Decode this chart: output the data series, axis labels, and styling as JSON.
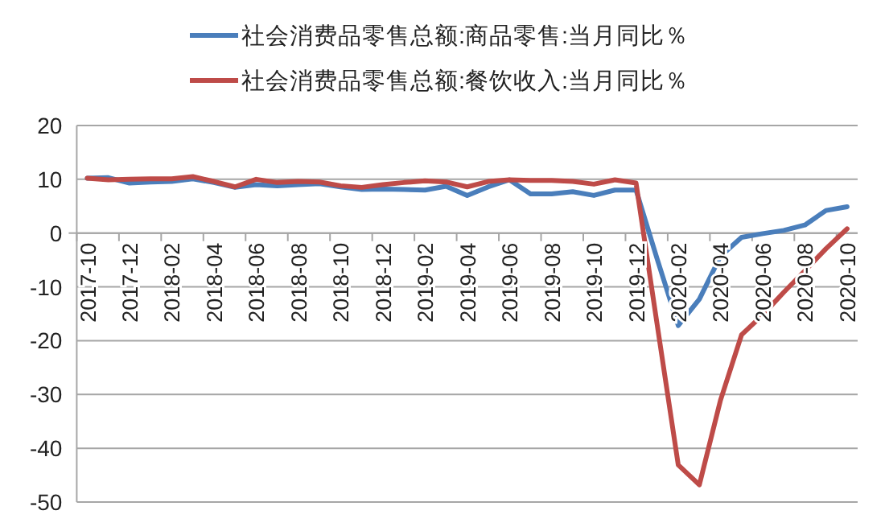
{
  "chart_data": {
    "type": "line",
    "categories": [
      "2017-10",
      null,
      "2017-12",
      null,
      "2018-02",
      null,
      "2018-04",
      null,
      "2018-06",
      null,
      "2018-08",
      null,
      "2018-10",
      null,
      "2018-12",
      null,
      "2019-02",
      null,
      "2019-04",
      null,
      "2019-06",
      null,
      "2019-08",
      null,
      "2019-10",
      null,
      "2019-12",
      null,
      "2020-02",
      null,
      "2020-04",
      null,
      "2020-06",
      null,
      "2020-08",
      null,
      "2020-10"
    ],
    "series": [
      {
        "name": "社会消费品零售总额:商品零售:当月同比％",
        "color": "#4a7ebb",
        "values": [
          10.2,
          10.3,
          9.3,
          9.5,
          9.6,
          10.1,
          9.4,
          8.5,
          9.0,
          8.8,
          9.0,
          9.2,
          8.6,
          8.1,
          8.2,
          8.1,
          8.0,
          8.7,
          7.0,
          8.6,
          9.9,
          7.3,
          7.3,
          7.7,
          7.0,
          8.0,
          8.0,
          -4.8,
          -17.2,
          -12.3,
          -4.3,
          -0.8,
          -0.1,
          0.5,
          1.5,
          4.2,
          4.9
        ]
      },
      {
        "name": "社会消费品零售总额:餐饮收入:当月同比％",
        "color": "#be4b48",
        "values": [
          10.2,
          9.9,
          10.0,
          10.1,
          10.1,
          10.5,
          9.6,
          8.6,
          10.0,
          9.4,
          9.6,
          9.5,
          8.8,
          8.5,
          9.0,
          9.4,
          9.7,
          9.5,
          8.6,
          9.6,
          9.9,
          9.8,
          9.8,
          9.6,
          9.1,
          9.9,
          9.3,
          -17,
          -43.1,
          -46.8,
          -31.1,
          -18.9,
          -15.2,
          -11.0,
          -7.0,
          -2.9,
          0.8
        ]
      }
    ],
    "ylim": [
      -50,
      20
    ],
    "yticks": [
      -50,
      -40,
      -30,
      -20,
      -10,
      0,
      10,
      20
    ],
    "grid": "y",
    "legend": "top",
    "marker": "none",
    "line_style": "solid"
  }
}
